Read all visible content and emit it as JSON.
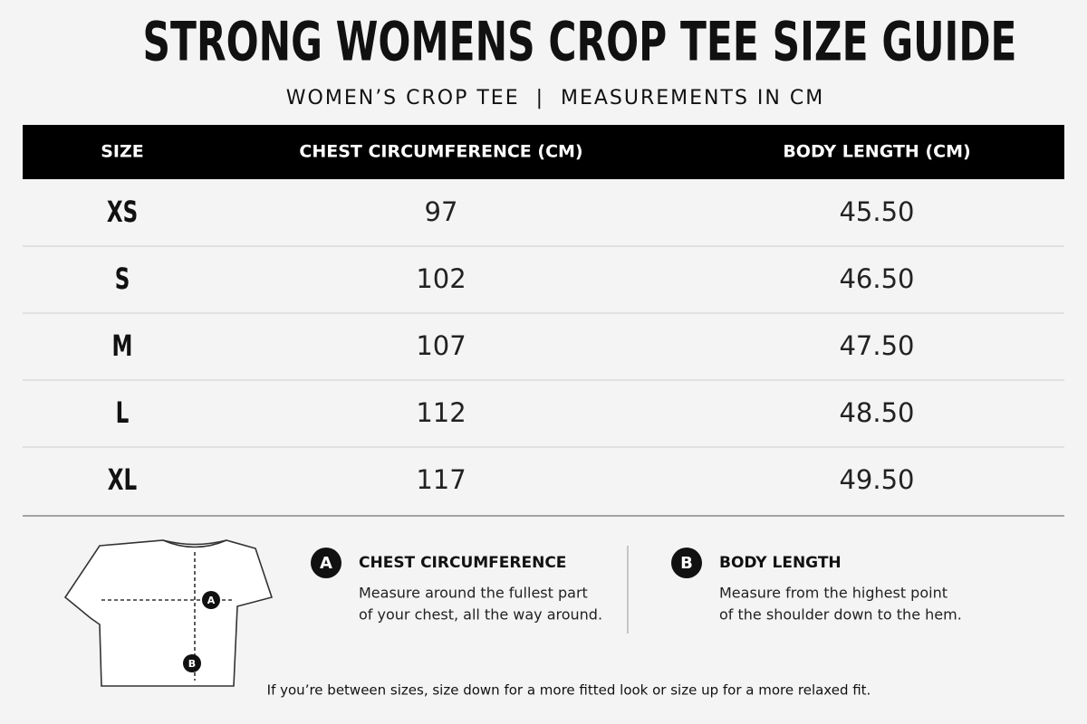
{
  "header": {
    "title": "STRONG WOMENS CROP TEE SIZE GUIDE",
    "subtitle": "WOMEN’S CROP TEE  |  MEASUREMENTS IN CM"
  },
  "table": {
    "columns": [
      "SIZE",
      "CHEST CIRCUMFERENCE (CM)",
      "BODY LENGTH (CM)"
    ],
    "rows": [
      [
        "XS",
        "97",
        "45.50"
      ],
      [
        "S",
        "102",
        "46.50"
      ],
      [
        "M",
        "107",
        "47.50"
      ],
      [
        "L",
        "112",
        "48.50"
      ],
      [
        "XL",
        "117",
        "49.50"
      ]
    ]
  },
  "guide": [
    {
      "marker": "A",
      "heading": "CHEST CIRCUMFERENCE",
      "lines": [
        "Measure around the fullest part",
        "of your chest, all the way around."
      ]
    },
    {
      "marker": "B",
      "heading": "BODY LENGTH",
      "lines": [
        "Measure from the highest point",
        "of the shoulder down to the hem."
      ]
    }
  ],
  "note": "If you’re between sizes, size down for a more fitted look or size up for a more relaxed fit."
}
